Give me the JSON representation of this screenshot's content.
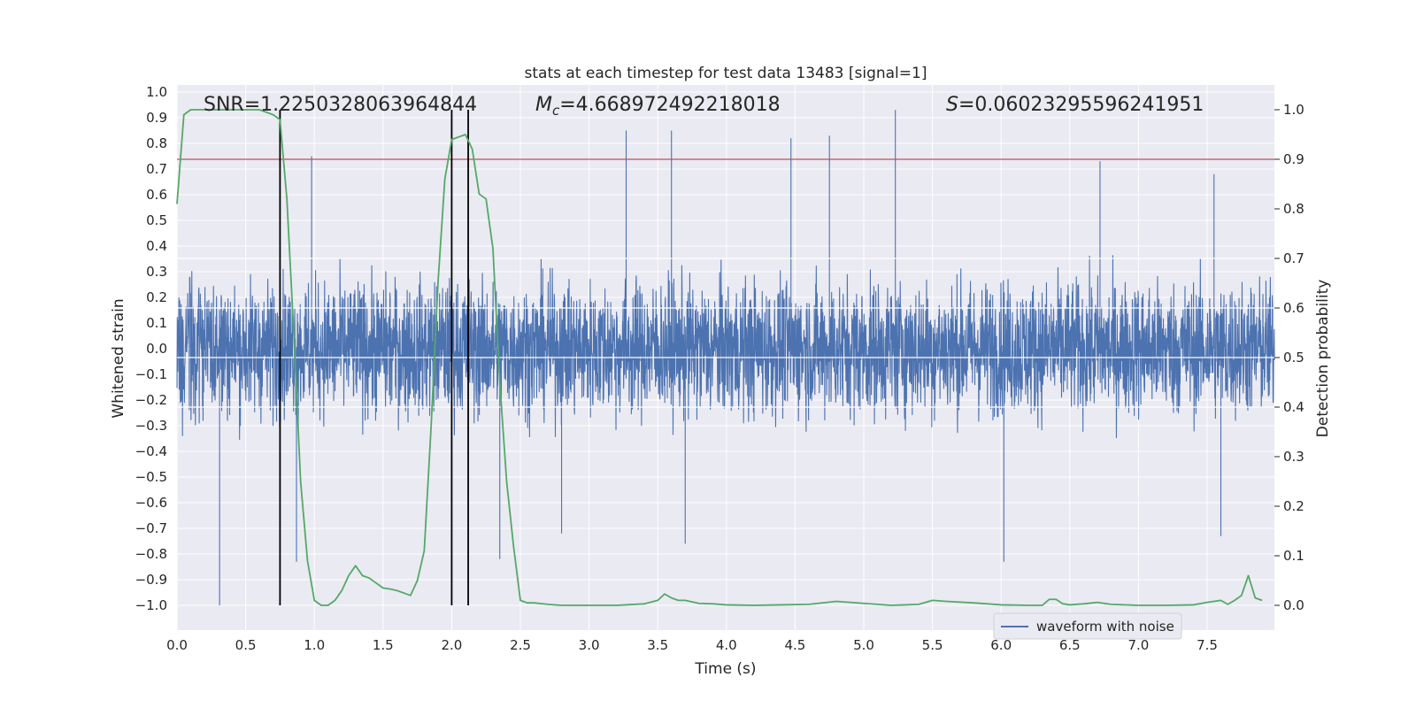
{
  "chart_data": {
    "type": "line",
    "title": "stats at each timestep for test data 13483 [signal=1]",
    "xlabel": "Time (s)",
    "ylabel": "Whitened strain",
    "y2label": "Detection probability",
    "xlim": [
      0.0,
      8.0
    ],
    "ylim": [
      -1.1,
      1.05
    ],
    "y2lim": [
      -0.05,
      1.05
    ],
    "xticks": [
      "0.0",
      "0.5",
      "1.0",
      "1.5",
      "2.0",
      "2.5",
      "3.0",
      "3.5",
      "4.0",
      "4.5",
      "5.0",
      "5.5",
      "6.0",
      "6.5",
      "7.0",
      "7.5"
    ],
    "xtick_values": [
      0,
      0.5,
      1,
      1.5,
      2,
      2.5,
      3,
      3.5,
      4,
      4.5,
      5,
      5.5,
      6,
      6.5,
      7,
      7.5
    ],
    "yticks": [
      "1.0",
      "0.9",
      "0.8",
      "0.7",
      "0.6",
      "0.5",
      "0.4",
      "0.3",
      "0.2",
      "0.1",
      "0.0",
      "−0.1",
      "−0.2",
      "−0.3",
      "−0.4",
      "−0.5",
      "−0.6",
      "−0.7",
      "−0.8",
      "−0.9",
      "−1.0"
    ],
    "ytick_values": [
      1.0,
      0.9,
      0.8,
      0.7,
      0.6,
      0.5,
      0.4,
      0.3,
      0.2,
      0.1,
      0.0,
      -0.1,
      -0.2,
      -0.3,
      -0.4,
      -0.5,
      -0.6,
      -0.7,
      -0.8,
      -0.9,
      -1.0
    ],
    "y2ticks": [
      "1.0",
      "0.9",
      "0.8",
      "0.7",
      "0.6",
      "0.5",
      "0.4",
      "0.3",
      "0.2",
      "0.1",
      "0.0"
    ],
    "y2tick_values": [
      1.0,
      0.9,
      0.8,
      0.7,
      0.6,
      0.5,
      0.4,
      0.3,
      0.2,
      0.1,
      0.0
    ],
    "annotations": {
      "snr": "SNR=1.2250328063964844",
      "mc_sym": "M",
      "mc_sub": "c",
      "mc_val": "=4.668972492218018",
      "s_sym": "S",
      "s_val": "=0.06023295596241951"
    },
    "series": [
      {
        "name": "waveform with noise",
        "axis": "left",
        "color": "#4c72b0",
        "description": "whitened strain noise time series, roughly within ±0.5 with spikes to ±1.0",
        "spikes_high": [
          [
            0.75,
            0.88
          ],
          [
            0.98,
            0.75
          ],
          [
            3.27,
            0.85
          ],
          [
            3.6,
            0.85
          ],
          [
            4.47,
            0.82
          ],
          [
            4.75,
            0.83
          ],
          [
            5.23,
            0.93
          ],
          [
            6.72,
            0.73
          ],
          [
            7.55,
            0.68
          ]
        ],
        "spikes_low": [
          [
            0.31,
            -1.0
          ],
          [
            0.87,
            -0.83
          ],
          [
            2.35,
            -0.82
          ],
          [
            2.8,
            -0.72
          ],
          [
            3.7,
            -0.76
          ],
          [
            6.02,
            -0.83
          ],
          [
            7.6,
            -0.73
          ]
        ]
      },
      {
        "name": "detection probability",
        "axis": "right",
        "color": "#55a868",
        "x": [
          0.0,
          0.05,
          0.1,
          0.2,
          0.3,
          0.4,
          0.5,
          0.6,
          0.7,
          0.75,
          0.8,
          0.85,
          0.9,
          0.95,
          1.0,
          1.05,
          1.1,
          1.15,
          1.2,
          1.25,
          1.3,
          1.35,
          1.4,
          1.45,
          1.5,
          1.55,
          1.6,
          1.7,
          1.75,
          1.8,
          1.85,
          1.9,
          1.95,
          2.0,
          2.05,
          2.1,
          2.15,
          2.2,
          2.25,
          2.3,
          2.35,
          2.4,
          2.45,
          2.5,
          2.55,
          2.6,
          2.7,
          2.8,
          3.0,
          3.2,
          3.4,
          3.5,
          3.55,
          3.6,
          3.65,
          3.7,
          3.8,
          3.9,
          4.0,
          4.2,
          4.4,
          4.6,
          4.8,
          5.0,
          5.2,
          5.4,
          5.5,
          5.6,
          5.8,
          6.0,
          6.2,
          6.3,
          6.35,
          6.4,
          6.45,
          6.5,
          6.6,
          6.7,
          6.8,
          7.0,
          7.2,
          7.4,
          7.5,
          7.6,
          7.65,
          7.7,
          7.75,
          7.8,
          7.85,
          7.9
        ],
        "y": [
          0.81,
          0.99,
          1.0,
          1.0,
          1.0,
          1.0,
          1.0,
          1.0,
          0.99,
          0.98,
          0.82,
          0.55,
          0.25,
          0.09,
          0.01,
          0.0,
          0.0,
          0.01,
          0.03,
          0.06,
          0.08,
          0.06,
          0.055,
          0.045,
          0.035,
          0.033,
          0.03,
          0.02,
          0.05,
          0.11,
          0.36,
          0.65,
          0.86,
          0.94,
          0.945,
          0.95,
          0.92,
          0.83,
          0.82,
          0.72,
          0.45,
          0.25,
          0.12,
          0.01,
          0.005,
          0.005,
          0.002,
          0.0,
          0.0,
          0.0,
          0.003,
          0.01,
          0.023,
          0.015,
          0.01,
          0.01,
          0.004,
          0.003,
          0.001,
          0.0,
          0.001,
          0.002,
          0.008,
          0.004,
          0.0,
          0.002,
          0.01,
          0.008,
          0.005,
          0.001,
          0.0,
          0.0,
          0.012,
          0.012,
          0.003,
          0.001,
          0.003,
          0.006,
          0.002,
          0.0,
          0.0,
          0.001,
          0.006,
          0.01,
          0.002,
          0.01,
          0.02,
          0.06,
          0.015,
          0.01
        ]
      },
      {
        "name": "threshold",
        "axis": "right",
        "color": "#c44e52",
        "value": 0.9
      }
    ],
    "vlines": [
      0.75,
      2.0,
      2.12
    ],
    "legend": {
      "location": "lower-right",
      "entries": [
        "waveform with noise"
      ]
    },
    "grid": true
  }
}
